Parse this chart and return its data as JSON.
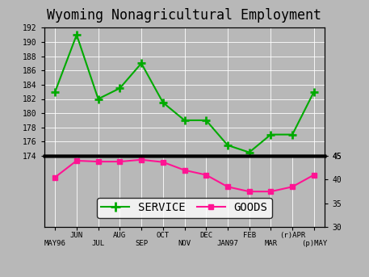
{
  "title": "Wyoming Nonagricultural Employment",
  "x_labels_top": [
    "",
    "JUN",
    "",
    "AUG",
    "",
    "OCT",
    "",
    "DEC",
    "",
    "FEB",
    "",
    "(r)APR",
    ""
  ],
  "x_labels_bot": [
    "MAY96",
    "",
    "JUL",
    "",
    "SEP",
    "",
    "NOV",
    "",
    "JAN97",
    "",
    "MAR",
    "",
    "(p)MAY"
  ],
  "service": [
    183.0,
    191.0,
    182.0,
    183.5,
    187.0,
    181.5,
    179.0,
    179.0,
    175.5,
    174.5,
    177.0,
    177.0,
    183.0
  ],
  "goods": [
    40.5,
    44.0,
    43.8,
    43.8,
    44.2,
    43.7,
    42.0,
    41.0,
    38.5,
    37.5,
    37.5,
    38.5,
    41.0
  ],
  "service_color": "#00aa00",
  "goods_color": "#ff1493",
  "bg_color": "#b8b8b8",
  "service_ylim": [
    174,
    192
  ],
  "service_yticks": [
    174,
    176,
    178,
    180,
    182,
    184,
    186,
    188,
    190,
    192
  ],
  "goods_ylim": [
    30,
    45
  ],
  "goods_yticks": [
    30,
    35,
    40,
    45
  ],
  "title_fontsize": 12,
  "tick_fontsize": 7,
  "legend_fontsize": 10,
  "xlabel_fontsize": 6.5
}
